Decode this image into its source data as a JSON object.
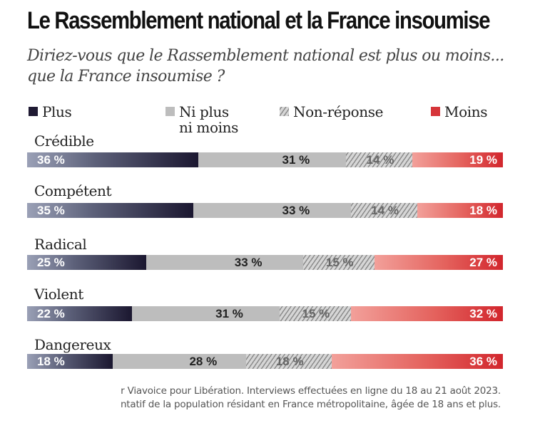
{
  "chart_data": {
    "type": "bar",
    "stacked": true,
    "orientation": "horizontal",
    "title": "Le Rassemblement national et la France insoumise",
    "subtitle": "Diriez-vous que le Rassemblement national est plus ou moins... que la France insoumise ?",
    "categories": [
      "Crédible",
      "Compétent",
      "Radical",
      "Violent",
      "Dangereux"
    ],
    "series": [
      {
        "name": "Plus",
        "color": "#1f1a33",
        "values": [
          36,
          35,
          25,
          22,
          18
        ]
      },
      {
        "name": "Ni plus ni moins",
        "color": "#bdbdbd",
        "values": [
          31,
          33,
          33,
          31,
          28
        ]
      },
      {
        "name": "Non-réponse",
        "color": "#cfcfcf",
        "hatched": true,
        "values": [
          14,
          14,
          15,
          15,
          18
        ]
      },
      {
        "name": "Moins",
        "color": "#d6353a",
        "values": [
          19,
          18,
          27,
          32,
          36
        ]
      }
    ],
    "value_suffix": " %",
    "xlim": [
      0,
      100
    ],
    "legend_position": "top",
    "source_lines": [
      "r Viavoice pour Libération. Interviews effectuées en ligne du 18 au 21 août 2023.",
      "ntatif de la population résidant en France métropolitaine, âgée de 18 ans et plus."
    ]
  }
}
